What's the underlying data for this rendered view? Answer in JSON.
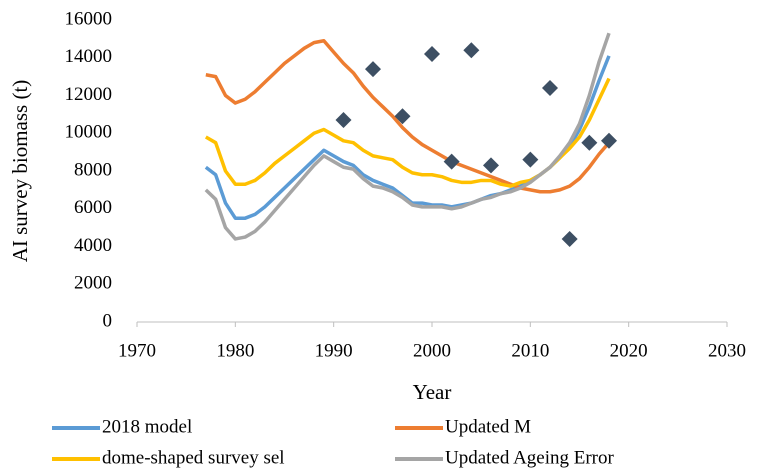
{
  "chart_data": {
    "type": "line",
    "xlabel": "Year",
    "ylabel": "AI survey biomass (t)",
    "xlim": [
      1970,
      2030
    ],
    "xticks": [
      1970,
      1980,
      1990,
      2000,
      2010,
      2020,
      2030
    ],
    "ylim": [
      0,
      16000
    ],
    "yticks": [
      0,
      2000,
      4000,
      6000,
      8000,
      10000,
      12000,
      14000,
      16000
    ],
    "grid": false,
    "x": [
      1977,
      1978,
      1979,
      1980,
      1981,
      1982,
      1983,
      1984,
      1985,
      1986,
      1987,
      1988,
      1989,
      1990,
      1991,
      1992,
      1993,
      1994,
      1995,
      1996,
      1997,
      1998,
      1999,
      2000,
      2001,
      2002,
      2003,
      2004,
      2005,
      2006,
      2007,
      2008,
      2009,
      2010,
      2011,
      2012,
      2013,
      2014,
      2015,
      2016,
      2017,
      2018
    ],
    "series": [
      {
        "name": "2018 model",
        "color": "#5b9bd5",
        "values": [
          8200,
          7800,
          6300,
          5500,
          5500,
          5700,
          6100,
          6600,
          7100,
          7600,
          8100,
          8600,
          9100,
          8800,
          8500,
          8300,
          7800,
          7500,
          7300,
          7100,
          6700,
          6300,
          6300,
          6200,
          6200,
          6100,
          6200,
          6300,
          6500,
          6700,
          6800,
          7000,
          7200,
          7500,
          7800,
          8200,
          8700,
          9300,
          10200,
          11400,
          12800,
          14100
        ]
      },
      {
        "name": "Updated M",
        "color": "#ed7d31",
        "values": [
          13100,
          13000,
          12000,
          11600,
          11800,
          12200,
          12700,
          13200,
          13700,
          14100,
          14500,
          14800,
          14900,
          14300,
          13700,
          13200,
          12500,
          11900,
          11400,
          10900,
          10300,
          9800,
          9400,
          9100,
          8800,
          8500,
          8300,
          8100,
          7900,
          7700,
          7500,
          7300,
          7100,
          7000,
          6900,
          6900,
          7000,
          7200,
          7600,
          8200,
          8900,
          9500
        ]
      },
      {
        "name": "dome-shaped survey sel",
        "color": "#ffc000",
        "values": [
          9800,
          9500,
          8000,
          7300,
          7300,
          7500,
          7900,
          8400,
          8800,
          9200,
          9600,
          10000,
          10200,
          9900,
          9600,
          9500,
          9100,
          8800,
          8700,
          8600,
          8200,
          7900,
          7800,
          7800,
          7700,
          7500,
          7400,
          7400,
          7500,
          7500,
          7300,
          7200,
          7400,
          7500,
          7800,
          8200,
          8700,
          9200,
          9800,
          10700,
          11800,
          12900
        ]
      },
      {
        "name": "Updated Ageing Error",
        "color": "#a5a5a5",
        "values": [
          7000,
          6500,
          5000,
          4400,
          4500,
          4800,
          5300,
          5900,
          6500,
          7100,
          7700,
          8300,
          8800,
          8500,
          8200,
          8100,
          7600,
          7200,
          7100,
          6900,
          6600,
          6200,
          6100,
          6100,
          6100,
          6000,
          6100,
          6300,
          6500,
          6600,
          6800,
          6900,
          7100,
          7400,
          7800,
          8200,
          8800,
          9500,
          10500,
          12000,
          13800,
          15300
        ]
      }
    ],
    "points": {
      "type": "scatter",
      "color": "#3d4f63",
      "x": [
        1991,
        1994,
        1997,
        2000,
        2002,
        2004,
        2006,
        2010,
        2012,
        2014,
        2016,
        2018
      ],
      "values": [
        10700,
        13400,
        10900,
        14200,
        8500,
        14400,
        8300,
        8600,
        12400,
        4400,
        9500,
        9600
      ]
    }
  }
}
